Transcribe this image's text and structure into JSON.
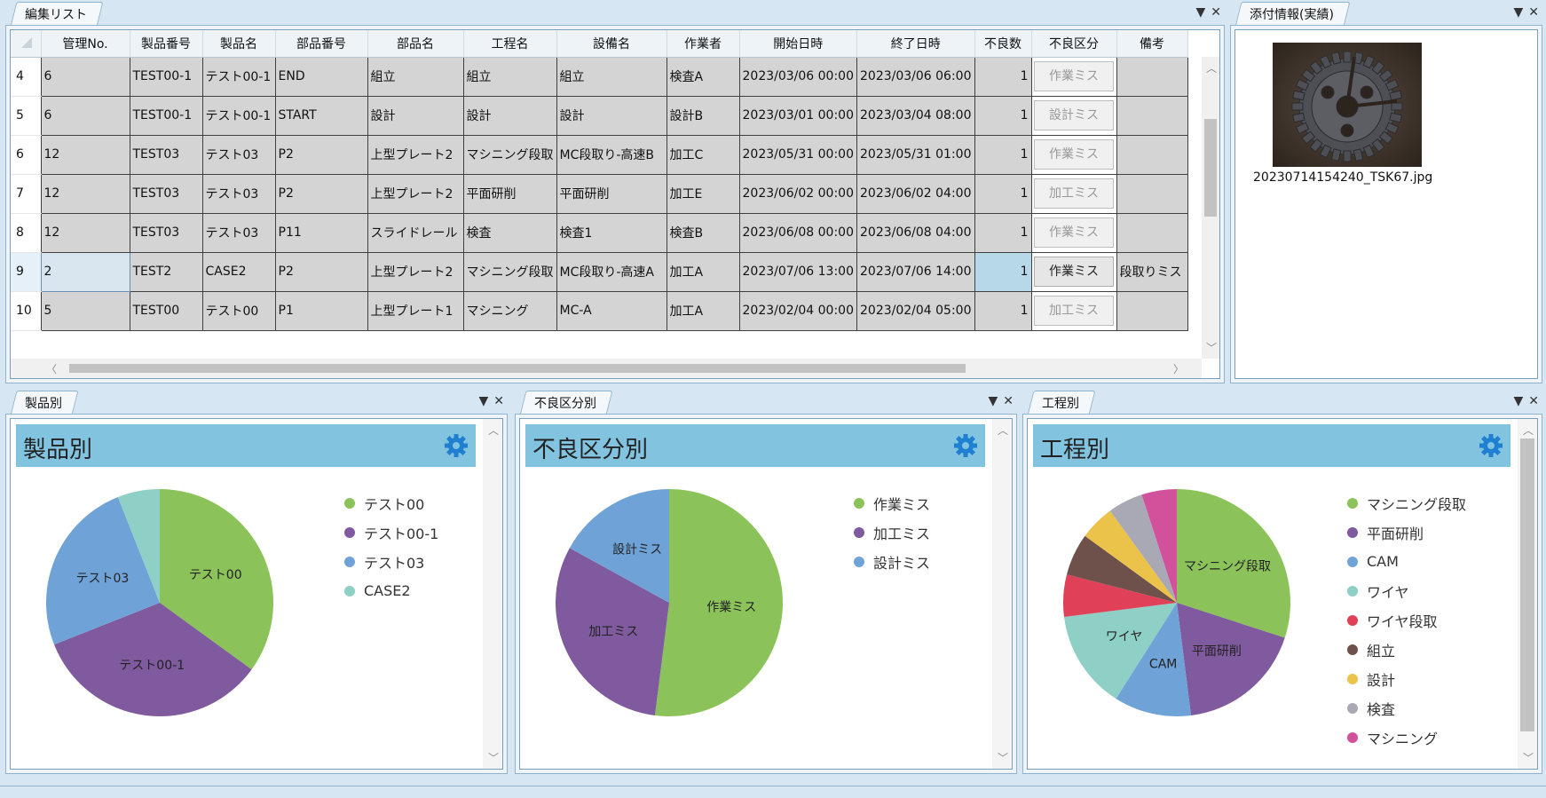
{
  "colors": {
    "green": "#8bc35a",
    "purple": "#7f5a9e",
    "blue": "#6fa3d8",
    "teal": "#8fd0c6",
    "red": "#e04058",
    "brown": "#6e514a",
    "yellow": "#ebc24a",
    "grey": "#a9a9b5",
    "pink": "#d1529b"
  },
  "edit_list": {
    "tab": "編集リスト",
    "pin_icon": "▼",
    "close_icon": "✕",
    "columns": [
      "管理No.",
      "製品番号",
      "製品名",
      "部品番号",
      "部品名",
      "工程名",
      "設備名",
      "作業者",
      "開始日時",
      "終了日時",
      "不良数",
      "不良区分",
      "備考"
    ],
    "rows": [
      {
        "n": "4",
        "c": [
          "6",
          "TEST00-1",
          "テスト00-1",
          "END",
          "組立",
          "組立",
          "組立",
          "検査A",
          "2023/03/06 00:00",
          "2023/03/06 06:00",
          "1",
          "作業ミス",
          ""
        ]
      },
      {
        "n": "5",
        "c": [
          "6",
          "TEST00-1",
          "テスト00-1",
          "START",
          "設計",
          "設計",
          "設計",
          "設計B",
          "2023/03/01 00:00",
          "2023/03/04 08:00",
          "1",
          "設計ミス",
          ""
        ]
      },
      {
        "n": "6",
        "c": [
          "12",
          "TEST03",
          "テスト03",
          "P2",
          "上型プレート2",
          "マシニング段取",
          "MC段取り-高速B",
          "加工C",
          "2023/05/31 00:00",
          "2023/05/31 01:00",
          "1",
          "作業ミス",
          ""
        ]
      },
      {
        "n": "7",
        "c": [
          "12",
          "TEST03",
          "テスト03",
          "P2",
          "上型プレート2",
          "平面研削",
          "平面研削",
          "加工E",
          "2023/06/02 00:00",
          "2023/06/02 04:00",
          "1",
          "加工ミス",
          ""
        ]
      },
      {
        "n": "8",
        "c": [
          "12",
          "TEST03",
          "テスト03",
          "P11",
          "スライドレール",
          "検査",
          "検査1",
          "検査B",
          "2023/06/08 00:00",
          "2023/06/08 04:00",
          "1",
          "作業ミス",
          ""
        ]
      },
      {
        "n": "9",
        "c": [
          "2",
          "TEST2",
          "CASE2",
          "P2",
          "上型プレート2",
          "マシニング段取",
          "MC段取り-高速A",
          "加工A",
          "2023/07/06 13:00",
          "2023/07/06 14:00",
          "1",
          "作業ミス",
          "段取りミス"
        ]
      },
      {
        "n": "10",
        "c": [
          "5",
          "TEST00",
          "テスト00",
          "P1",
          "上型プレート1",
          "マシニング",
          "MC-A",
          "加工A",
          "2023/02/04 00:00",
          "2023/02/04 05:00",
          "1",
          "加工ミス",
          ""
        ]
      }
    ]
  },
  "attach": {
    "tab": "添付情報(実績)",
    "filename": "20230714154240_TSK67.jpg"
  },
  "charts": [
    {
      "tab": "製品別",
      "title": "製品別",
      "chart_data": {
        "type": "pie",
        "categories": [
          "テスト00",
          "テスト00-1",
          "テスト03",
          "CASE2"
        ],
        "values": [
          35,
          34,
          25,
          6
        ],
        "slice_labels": [
          "テスト00",
          "テスト00-1",
          "テスト03",
          ""
        ]
      }
    },
    {
      "tab": "不良区分別",
      "title": "不良区分別",
      "chart_data": {
        "type": "pie",
        "categories": [
          "作業ミス",
          "加工ミス",
          "設計ミス"
        ],
        "values": [
          52,
          31,
          17
        ],
        "slice_labels": [
          "作業ミス",
          "加工ミス",
          "設計ミス"
        ]
      }
    },
    {
      "tab": "工程別",
      "title": "工程別",
      "chart_data": {
        "type": "pie",
        "categories": [
          "マシニング段取",
          "平面研削",
          "CAM",
          "ワイヤ",
          "ワイヤ段取",
          "組立",
          "設計",
          "検査",
          "マシニング"
        ],
        "values": [
          30,
          18,
          11,
          14,
          6,
          6,
          5,
          5,
          5
        ],
        "slice_labels": [
          "マシニング段取",
          "平面研削",
          "CAM",
          "ワイヤ",
          "",
          "",
          "",
          "",
          ""
        ]
      }
    }
  ]
}
